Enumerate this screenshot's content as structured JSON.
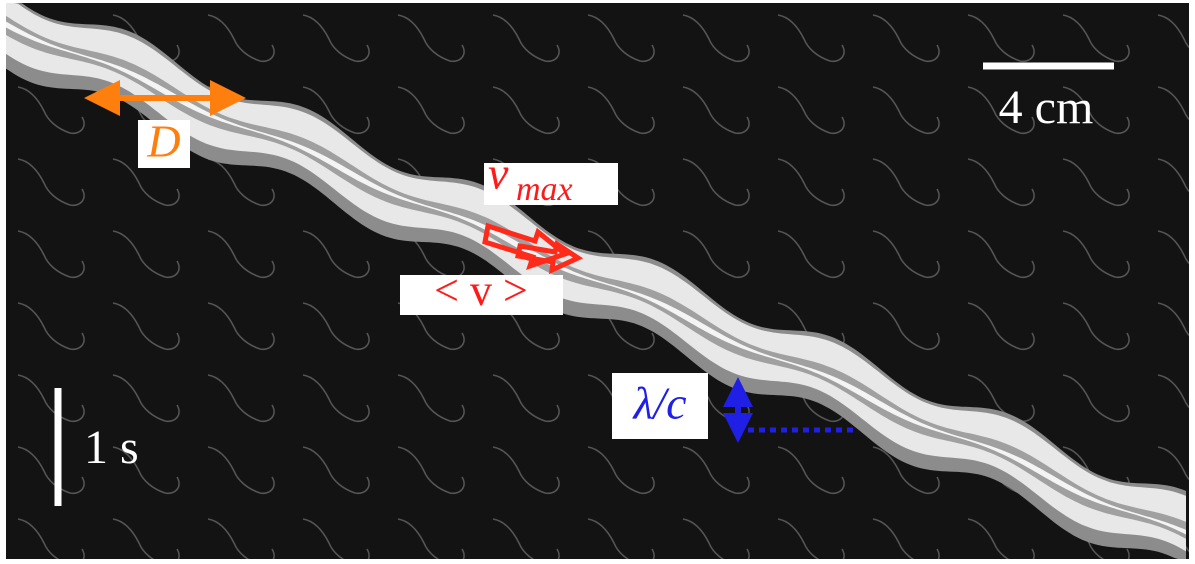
{
  "scale_bars": {
    "length": "4 cm",
    "time": "1 s"
  },
  "annotations": {
    "diameter": "D",
    "max_speed": {
      "symbol": "v",
      "subscript": "max"
    },
    "mean_speed": "< v >",
    "period": "λ/c"
  }
}
